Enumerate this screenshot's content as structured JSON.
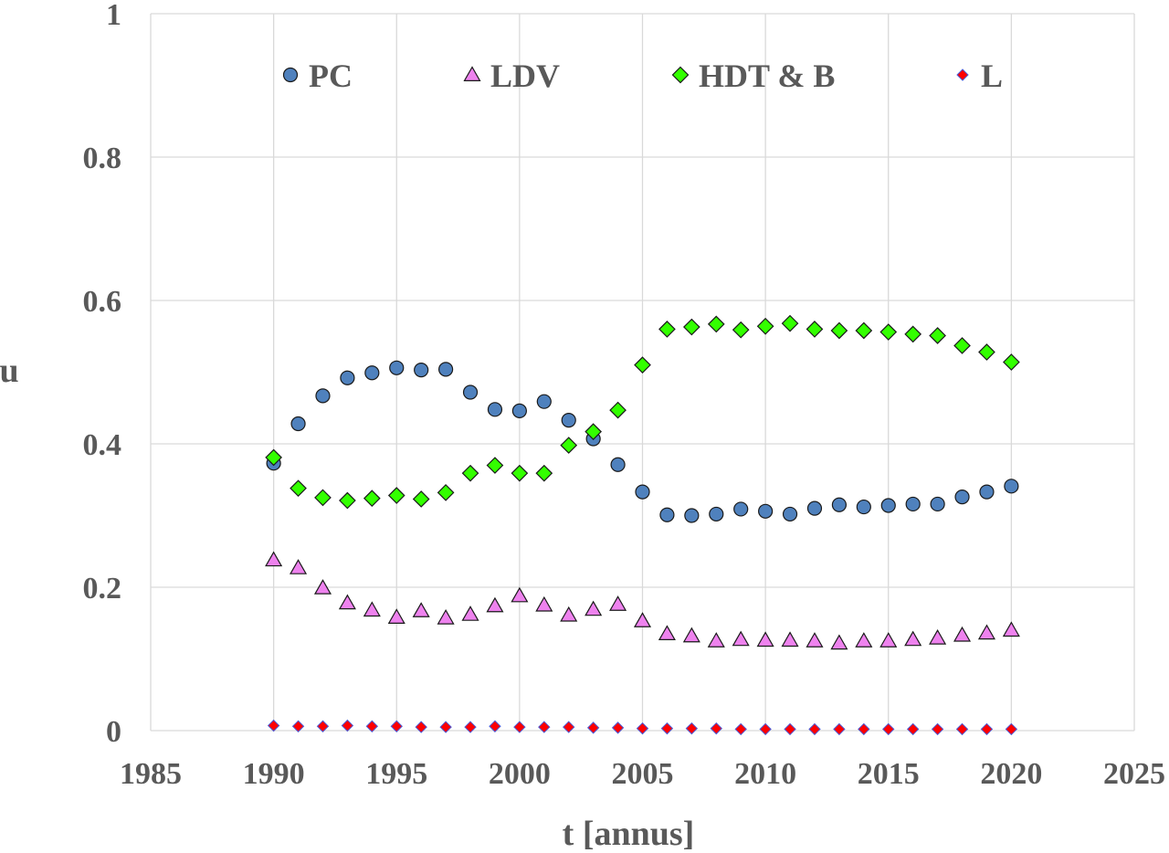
{
  "chart_data": {
    "type": "scatter",
    "title": "",
    "xlabel": "t [annus]",
    "ylabel": "u",
    "xlim": [
      1985,
      2025
    ],
    "ylim": [
      0,
      1
    ],
    "xticks": [
      1985,
      1990,
      1995,
      2000,
      2005,
      2010,
      2015,
      2020,
      2025
    ],
    "yticks": [
      0,
      0.2,
      0.4,
      0.6,
      0.8,
      1
    ],
    "xtick_labels": [
      "1985",
      "1990",
      "1995",
      "2000",
      "2005",
      "2010",
      "2015",
      "2020",
      "2025"
    ],
    "ytick_labels": [
      "0",
      "0.2",
      "0.4",
      "0.6",
      "0.8",
      "1"
    ],
    "grid": true,
    "legend_position": "top",
    "x": [
      1990,
      1991,
      1992,
      1993,
      1994,
      1995,
      1996,
      1997,
      1998,
      1999,
      2000,
      2001,
      2002,
      2003,
      2004,
      2005,
      2006,
      2007,
      2008,
      2009,
      2010,
      2011,
      2012,
      2013,
      2014,
      2015,
      2016,
      2017,
      2018,
      2019,
      2020
    ],
    "series": [
      {
        "name": "PC",
        "marker": "circle",
        "color": "#4f81bd",
        "values": [
          0.373,
          0.428,
          0.467,
          0.492,
          0.499,
          0.506,
          0.503,
          0.504,
          0.472,
          0.448,
          0.446,
          0.459,
          0.433,
          0.407,
          0.371,
          0.333,
          0.301,
          0.3,
          0.302,
          0.309,
          0.306,
          0.302,
          0.31,
          0.315,
          0.312,
          0.314,
          0.316,
          0.316,
          0.326,
          0.333,
          0.341
        ]
      },
      {
        "name": "LDV",
        "marker": "triangle",
        "color": "#ee82ee",
        "values": [
          0.238,
          0.227,
          0.199,
          0.178,
          0.168,
          0.158,
          0.167,
          0.157,
          0.162,
          0.174,
          0.188,
          0.175,
          0.161,
          0.169,
          0.176,
          0.153,
          0.135,
          0.132,
          0.125,
          0.127,
          0.126,
          0.126,
          0.125,
          0.122,
          0.125,
          0.125,
          0.127,
          0.129,
          0.133,
          0.136,
          0.14
        ]
      },
      {
        "name": "HDT & B",
        "marker": "diamond",
        "color": "#33ff00",
        "values": [
          0.381,
          0.338,
          0.325,
          0.321,
          0.324,
          0.328,
          0.323,
          0.332,
          0.359,
          0.37,
          0.359,
          0.359,
          0.398,
          0.417,
          0.447,
          0.51,
          0.56,
          0.563,
          0.567,
          0.559,
          0.564,
          0.568,
          0.56,
          0.558,
          0.558,
          0.556,
          0.553,
          0.551,
          0.537,
          0.528,
          0.514
        ]
      },
      {
        "name": "L",
        "marker": "diamond-small",
        "color": "#ff0000",
        "values": [
          0.007,
          0.006,
          0.006,
          0.007,
          0.006,
          0.006,
          0.005,
          0.005,
          0.005,
          0.006,
          0.005,
          0.005,
          0.005,
          0.004,
          0.004,
          0.003,
          0.003,
          0.003,
          0.003,
          0.002,
          0.002,
          0.002,
          0.002,
          0.002,
          0.002,
          0.002,
          0.002,
          0.002,
          0.002,
          0.002,
          0.002
        ]
      }
    ]
  }
}
